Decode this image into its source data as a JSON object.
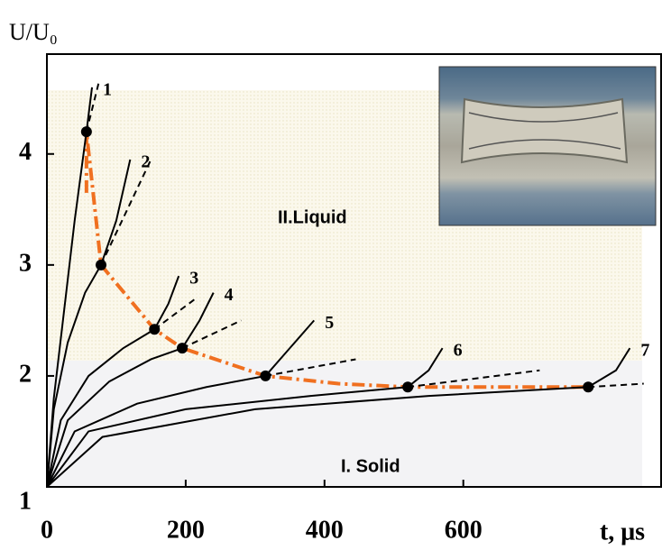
{
  "chart_data": {
    "type": "line",
    "y_label": "U/U₀",
    "x_label": "t, μs",
    "region_labels": [
      "II.Liquid",
      "I. Solid"
    ],
    "xlim": [
      0,
      885
    ],
    "ylim": [
      1,
      4.9
    ],
    "xticks": [
      0,
      200,
      400,
      600
    ],
    "yticks": [
      1,
      2,
      3,
      4
    ],
    "color": "#000000",
    "series": [
      {
        "name": "1",
        "x": [
          0,
          10,
          25,
          40,
          57,
          65
        ],
        "values": [
          1,
          1.8,
          2.6,
          3.4,
          4.2,
          4.6
        ],
        "tangent": {
          "x": [
            57,
            75
          ],
          "values": [
            4.2,
            4.65
          ]
        }
      },
      {
        "name": "2",
        "x": [
          0,
          10,
          30,
          55,
          78,
          100,
          120
        ],
        "values": [
          1,
          1.7,
          2.3,
          2.75,
          3.0,
          3.4,
          3.95
        ],
        "tangent": {
          "x": [
            78,
            150
          ],
          "values": [
            3.0,
            3.95
          ]
        }
      },
      {
        "name": "3",
        "x": [
          0,
          20,
          60,
          110,
          155,
          175,
          190
        ],
        "values": [
          1,
          1.6,
          2.0,
          2.25,
          2.42,
          2.65,
          2.9
        ],
        "tangent": {
          "x": [
            155,
            215
          ],
          "values": [
            2.42,
            2.7
          ]
        }
      },
      {
        "name": "4",
        "x": [
          0,
          30,
          90,
          150,
          195,
          220,
          240
        ],
        "values": [
          1,
          1.6,
          1.95,
          2.15,
          2.25,
          2.5,
          2.75
        ],
        "tangent": {
          "x": [
            195,
            280
          ],
          "values": [
            2.25,
            2.5
          ]
        }
      },
      {
        "name": "5",
        "x": [
          0,
          40,
          130,
          230,
          315,
          350,
          385
        ],
        "values": [
          1,
          1.5,
          1.75,
          1.9,
          2.0,
          2.25,
          2.5
        ],
        "tangent": {
          "x": [
            315,
            445
          ],
          "values": [
            2.0,
            2.15
          ]
        }
      },
      {
        "name": "6",
        "x": [
          0,
          60,
          200,
          380,
          520,
          550,
          570
        ],
        "values": [
          1,
          1.5,
          1.7,
          1.82,
          1.9,
          2.05,
          2.25
        ],
        "tangent": {
          "x": [
            520,
            710
          ],
          "values": [
            1.9,
            2.05
          ]
        }
      },
      {
        "name": "7",
        "x": [
          0,
          80,
          300,
          550,
          780,
          820,
          840
        ],
        "values": [
          1,
          1.45,
          1.7,
          1.82,
          1.9,
          2.05,
          2.25
        ],
        "tangent": {
          "x": [
            780,
            860
          ],
          "values": [
            1.9,
            1.93
          ]
        }
      }
    ],
    "boundary": {
      "color": "#f07020",
      "x": [
        57,
        57,
        78,
        155,
        195,
        315,
        420,
        520,
        780
      ],
      "values": [
        3.65,
        4.2,
        3.0,
        2.42,
        2.25,
        2.0,
        1.93,
        1.9,
        1.9
      ]
    },
    "points": {
      "x": [
        57,
        78,
        155,
        195,
        315,
        520,
        780
      ],
      "values": [
        4.2,
        3.0,
        2.42,
        2.25,
        2.0,
        1.9,
        1.9
      ]
    }
  }
}
